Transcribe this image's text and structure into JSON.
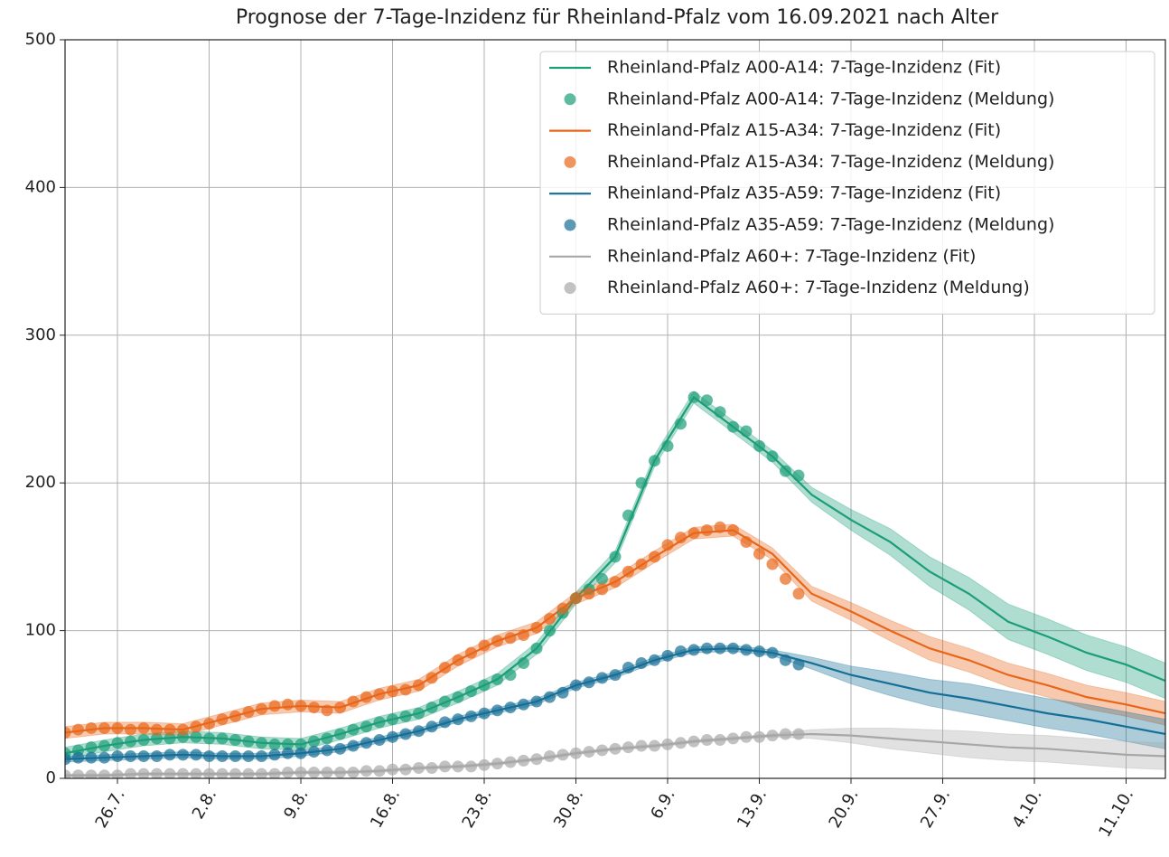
{
  "chart_data": {
    "type": "line",
    "title": "Prognose der 7-Tage-Inzidenz für Rheinland-Pfalz vom 16.09.2021 nach Alter",
    "grid": true,
    "legend": "upper right",
    "xlim": [
      "2021-07-22",
      "2021-10-14"
    ],
    "xticks": [
      {
        "value": "2021-07-26",
        "label": "26.7."
      },
      {
        "value": "2021-08-02",
        "label": "2.8."
      },
      {
        "value": "2021-08-09",
        "label": "9.8."
      },
      {
        "value": "2021-08-16",
        "label": "16.8."
      },
      {
        "value": "2021-08-23",
        "label": "23.8."
      },
      {
        "value": "2021-08-30",
        "label": "30.8."
      },
      {
        "value": "2021-09-06",
        "label": "6.9."
      },
      {
        "value": "2021-09-13",
        "label": "13.9."
      },
      {
        "value": "2021-09-20",
        "label": "20.9."
      },
      {
        "value": "2021-09-27",
        "label": "27.9."
      },
      {
        "value": "2021-10-04",
        "label": "4.10."
      },
      {
        "value": "2021-10-11",
        "label": "11.10."
      }
    ],
    "ylim": [
      0,
      500
    ],
    "yticks": [
      0,
      100,
      200,
      300,
      400,
      500
    ],
    "x_fit": [
      "2021-07-22",
      "2021-07-25",
      "2021-07-28",
      "2021-07-31",
      "2021-08-03",
      "2021-08-06",
      "2021-08-09",
      "2021-08-12",
      "2021-08-15",
      "2021-08-18",
      "2021-08-21",
      "2021-08-24",
      "2021-08-27",
      "2021-08-30",
      "2021-09-02",
      "2021-09-05",
      "2021-09-08",
      "2021-09-11",
      "2021-09-14",
      "2021-09-17",
      "2021-09-20",
      "2021-09-23",
      "2021-09-26",
      "2021-09-29",
      "2021-10-02",
      "2021-10-05",
      "2021-10-08",
      "2021-10-11",
      "2021-10-14"
    ],
    "x_meldung": [
      "2021-07-22",
      "2021-07-23",
      "2021-07-24",
      "2021-07-25",
      "2021-07-26",
      "2021-07-27",
      "2021-07-28",
      "2021-07-29",
      "2021-07-30",
      "2021-07-31",
      "2021-08-01",
      "2021-08-02",
      "2021-08-03",
      "2021-08-04",
      "2021-08-05",
      "2021-08-06",
      "2021-08-07",
      "2021-08-08",
      "2021-08-09",
      "2021-08-10",
      "2021-08-11",
      "2021-08-12",
      "2021-08-13",
      "2021-08-14",
      "2021-08-15",
      "2021-08-16",
      "2021-08-17",
      "2021-08-18",
      "2021-08-19",
      "2021-08-20",
      "2021-08-21",
      "2021-08-22",
      "2021-08-23",
      "2021-08-24",
      "2021-08-25",
      "2021-08-26",
      "2021-08-27",
      "2021-08-28",
      "2021-08-29",
      "2021-08-30",
      "2021-08-31",
      "2021-09-01",
      "2021-09-02",
      "2021-09-03",
      "2021-09-04",
      "2021-09-05",
      "2021-09-06",
      "2021-09-07",
      "2021-09-08",
      "2021-09-09",
      "2021-09-10",
      "2021-09-11",
      "2021-09-12",
      "2021-09-13",
      "2021-09-14",
      "2021-09-15",
      "2021-09-16"
    ],
    "series": [
      {
        "name": "Rheinland-Pfalz A00-A14: 7-Tage-Inzidenz (Fit)",
        "type": "line",
        "color": "#1b9e77",
        "values": [
          17,
          22,
          26,
          28,
          27,
          24,
          23,
          30,
          38,
          44,
          55,
          67,
          88,
          122,
          150,
          215,
          258,
          238,
          218,
          192,
          175,
          160,
          140,
          125,
          106,
          96,
          85,
          77,
          66
        ],
        "lower": [
          13,
          18,
          22,
          24,
          23,
          20,
          19,
          26,
          34,
          40,
          51,
          63,
          84,
          118,
          146,
          211,
          254,
          234,
          214,
          187,
          168,
          151,
          130,
          114,
          94,
          84,
          73,
          65,
          54
        ],
        "upper": [
          21,
          26,
          30,
          32,
          31,
          28,
          27,
          34,
          42,
          48,
          59,
          71,
          92,
          126,
          154,
          219,
          262,
          242,
          222,
          197,
          182,
          169,
          150,
          136,
          118,
          108,
          97,
          89,
          78
        ]
      },
      {
        "name": "Rheinland-Pfalz A00-A14: 7-Tage-Inzidenz (Meldung)",
        "type": "scatter",
        "color": "#1b9e77",
        "values": [
          17,
          19,
          21,
          22,
          24,
          25,
          26,
          27,
          27,
          28,
          28,
          27,
          27,
          26,
          25,
          24,
          23,
          23,
          23,
          25,
          27,
          30,
          33,
          35,
          38,
          40,
          42,
          44,
          48,
          52,
          55,
          59,
          63,
          67,
          70,
          78,
          88,
          100,
          112,
          122,
          128,
          135,
          150,
          178,
          200,
          215,
          225,
          240,
          258,
          256,
          248,
          238,
          235,
          225,
          218,
          208,
          205
        ]
      },
      {
        "name": "Rheinland-Pfalz A15-A34: 7-Tage-Inzidenz (Fit)",
        "type": "line",
        "color": "#e8661a",
        "values": [
          31,
          34,
          34,
          33,
          40,
          47,
          49,
          48,
          57,
          63,
          80,
          93,
          102,
          122,
          133,
          150,
          166,
          168,
          152,
          125,
          113,
          100,
          88,
          80,
          70,
          63,
          55,
          50,
          44
        ],
        "lower": [
          27,
          30,
          30,
          29,
          36,
          43,
          45,
          44,
          53,
          59,
          76,
          89,
          98,
          118,
          129,
          146,
          162,
          164,
          148,
          120,
          107,
          93,
          80,
          72,
          62,
          55,
          47,
          42,
          36
        ],
        "upper": [
          35,
          38,
          38,
          37,
          44,
          51,
          53,
          52,
          61,
          67,
          84,
          97,
          106,
          126,
          137,
          154,
          170,
          172,
          156,
          130,
          119,
          107,
          96,
          88,
          78,
          71,
          63,
          58,
          52
        ]
      },
      {
        "name": "Rheinland-Pfalz A15-A34: 7-Tage-Inzidenz (Meldung)",
        "type": "scatter",
        "color": "#e8661a",
        "values": [
          31,
          33,
          34,
          34,
          34,
          33,
          34,
          33,
          33,
          33,
          35,
          37,
          40,
          42,
          45,
          47,
          49,
          50,
          49,
          48,
          46,
          48,
          52,
          55,
          57,
          59,
          60,
          63,
          68,
          75,
          80,
          85,
          90,
          93,
          95,
          97,
          102,
          108,
          115,
          122,
          125,
          128,
          133,
          140,
          145,
          150,
          158,
          163,
          166,
          168,
          170,
          168,
          160,
          152,
          145,
          135,
          125
        ]
      },
      {
        "name": "Rheinland-Pfalz A35-A59: 7-Tage-Inzidenz (Fit)",
        "type": "line",
        "color": "#156e96",
        "values": [
          13,
          14,
          15,
          16,
          15,
          15,
          17,
          20,
          26,
          32,
          40,
          46,
          52,
          63,
          70,
          80,
          87,
          88,
          85,
          78,
          70,
          64,
          58,
          54,
          49,
          44,
          40,
          35,
          30
        ],
        "lower": [
          11,
          12,
          13,
          14,
          13,
          13,
          15,
          18,
          24,
          30,
          38,
          44,
          50,
          61,
          68,
          78,
          85,
          86,
          83,
          74,
          64,
          56,
          49,
          44,
          39,
          34,
          30,
          25,
          20
        ],
        "upper": [
          15,
          16,
          17,
          18,
          17,
          17,
          19,
          22,
          28,
          34,
          42,
          48,
          54,
          65,
          72,
          82,
          89,
          90,
          87,
          82,
          76,
          72,
          67,
          64,
          59,
          54,
          50,
          45,
          40
        ]
      },
      {
        "name": "Rheinland-Pfalz A35-A59: 7-Tage-Inzidenz (Meldung)",
        "type": "scatter",
        "color": "#156e96",
        "values": [
          13,
          14,
          14,
          14,
          15,
          15,
          15,
          15,
          16,
          16,
          16,
          15,
          15,
          15,
          15,
          15,
          16,
          17,
          17,
          18,
          19,
          20,
          22,
          24,
          26,
          28,
          30,
          32,
          35,
          38,
          40,
          42,
          44,
          46,
          48,
          50,
          52,
          55,
          58,
          63,
          65,
          68,
          70,
          75,
          78,
          80,
          83,
          86,
          87,
          88,
          88,
          88,
          87,
          86,
          85,
          80,
          77
        ]
      },
      {
        "name": "Rheinland-Pfalz A60+: 7-Tage-Inzidenz (Fit)",
        "type": "line",
        "color": "#a6a8a6",
        "values": [
          2,
          2,
          3,
          3,
          3,
          3,
          4,
          4,
          5,
          7,
          8,
          10,
          13,
          17,
          20,
          22,
          25,
          27,
          29,
          30,
          29,
          27,
          25,
          23,
          21,
          20,
          18,
          16,
          15
        ],
        "lower": [
          1,
          1,
          2,
          2,
          2,
          2,
          3,
          3,
          4,
          6,
          7,
          9,
          12,
          16,
          19,
          21,
          24,
          26,
          28,
          27,
          24,
          20,
          17,
          14,
          12,
          11,
          9,
          7,
          6
        ],
        "upper": [
          3,
          3,
          4,
          4,
          4,
          4,
          5,
          5,
          6,
          8,
          9,
          11,
          14,
          18,
          21,
          23,
          26,
          28,
          30,
          33,
          34,
          34,
          33,
          32,
          30,
          29,
          27,
          25,
          24
        ]
      },
      {
        "name": "Rheinland-Pfalz A60+: 7-Tage-Inzidenz (Meldung)",
        "type": "scatter",
        "color": "#a6a8a6",
        "values": [
          2,
          2,
          2,
          2,
          2,
          3,
          3,
          3,
          3,
          3,
          3,
          3,
          3,
          3,
          3,
          3,
          3,
          4,
          4,
          4,
          4,
          4,
          4,
          5,
          5,
          6,
          6,
          7,
          7,
          8,
          8,
          8,
          9,
          10,
          11,
          12,
          13,
          15,
          16,
          17,
          18,
          19,
          20,
          21,
          22,
          22,
          23,
          24,
          25,
          26,
          26,
          27,
          28,
          28,
          29,
          30,
          30
        ]
      }
    ]
  }
}
